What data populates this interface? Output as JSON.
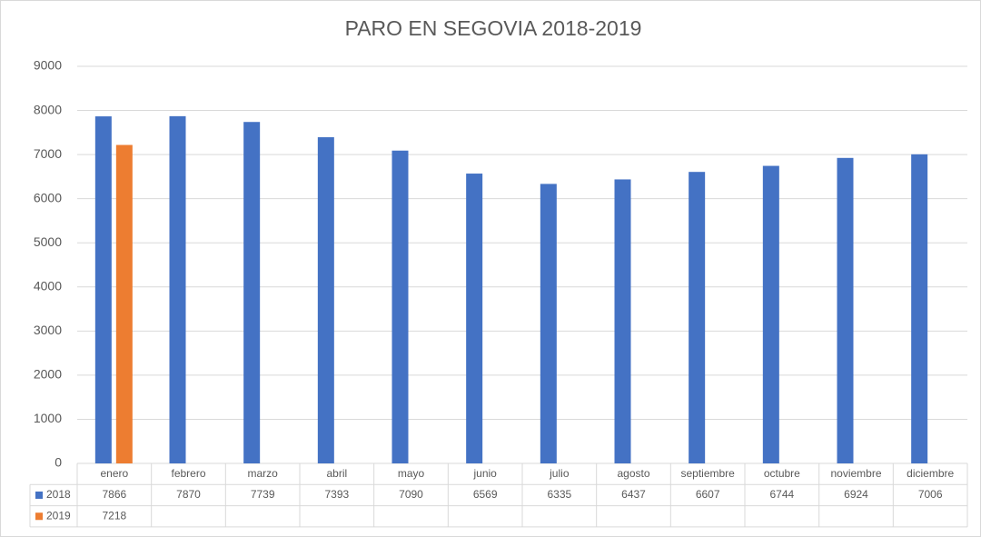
{
  "chart_data": {
    "type": "bar",
    "title": "PARO EN SEGOVIA 2018-2019",
    "categories": [
      "enero",
      "febrero",
      "marzo",
      "abril",
      "mayo",
      "junio",
      "julio",
      "agosto",
      "septiembre",
      "octubre",
      "noviembre",
      "diciembre"
    ],
    "series": [
      {
        "name": "2018",
        "color": "#4472c4",
        "values": [
          7866,
          7870,
          7739,
          7393,
          7090,
          6569,
          6335,
          6437,
          6607,
          6744,
          6924,
          7006
        ]
      },
      {
        "name": "2019",
        "color": "#ed7d31",
        "values": [
          7218,
          null,
          null,
          null,
          null,
          null,
          null,
          null,
          null,
          null,
          null,
          null
        ]
      }
    ],
    "ylim": [
      0,
      9000
    ],
    "yticks": [
      0,
      1000,
      2000,
      3000,
      4000,
      5000,
      6000,
      7000,
      8000,
      9000
    ],
    "grid": true
  }
}
